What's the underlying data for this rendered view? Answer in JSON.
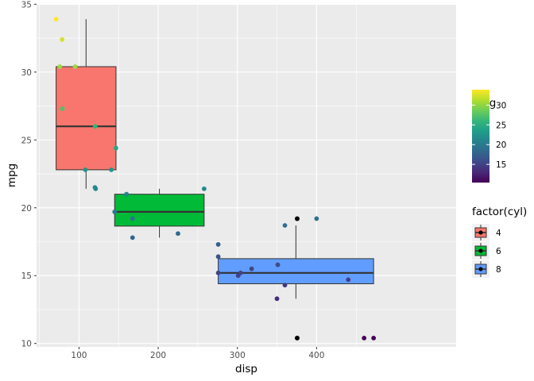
{
  "chart_data": {
    "type": "boxplot",
    "title": "",
    "xlabel": "disp",
    "ylabel": "mpg",
    "xlim": [
      46.4,
      576.2
    ],
    "ylim": [
      9.75,
      35.02
    ],
    "x_ticks": [
      100,
      200,
      300,
      400
    ],
    "y_ticks": [
      10,
      15,
      20,
      25,
      30,
      35
    ],
    "grid": true,
    "boxes": [
      {
        "group": "4",
        "x_min": 71.1,
        "x_max": 146.7,
        "whisker_low": 21.4,
        "q1": 22.8,
        "median": 26.0,
        "q3": 30.4,
        "whisker_high": 33.9,
        "fill": "#F8766D"
      },
      {
        "group": "6",
        "x_min": 145.0,
        "x_max": 258.0,
        "whisker_low": 17.8,
        "q1": 18.65,
        "median": 19.7,
        "q3": 21.0,
        "whisker_high": 21.4,
        "fill": "#00BA38"
      },
      {
        "group": "8",
        "x_min": 275.8,
        "x_max": 472.0,
        "whisker_low": 13.3,
        "q1": 14.4,
        "median": 15.2,
        "q3": 16.25,
        "whisker_high": 18.7,
        "fill": "#619CFF"
      }
    ],
    "outliers": [
      {
        "x": 375.5,
        "y": 19.2
      },
      {
        "x": 375.5,
        "y": 10.4
      }
    ],
    "points": [
      {
        "x": 160.0,
        "y": 21.0
      },
      {
        "x": 160.0,
        "y": 21.0
      },
      {
        "x": 108.0,
        "y": 22.8
      },
      {
        "x": 258.0,
        "y": 21.4
      },
      {
        "x": 360.0,
        "y": 18.7
      },
      {
        "x": 225.0,
        "y": 18.1
      },
      {
        "x": 360.0,
        "y": 14.3
      },
      {
        "x": 146.7,
        "y": 24.4
      },
      {
        "x": 140.8,
        "y": 22.8
      },
      {
        "x": 167.6,
        "y": 19.2
      },
      {
        "x": 167.6,
        "y": 17.8
      },
      {
        "x": 275.8,
        "y": 16.4
      },
      {
        "x": 275.8,
        "y": 17.3
      },
      {
        "x": 275.8,
        "y": 15.2
      },
      {
        "x": 472.0,
        "y": 10.4
      },
      {
        "x": 460.0,
        "y": 10.4
      },
      {
        "x": 440.0,
        "y": 14.7
      },
      {
        "x": 78.7,
        "y": 32.4
      },
      {
        "x": 75.7,
        "y": 30.4
      },
      {
        "x": 71.1,
        "y": 33.9
      },
      {
        "x": 120.1,
        "y": 21.5
      },
      {
        "x": 318.0,
        "y": 15.5
      },
      {
        "x": 304.0,
        "y": 15.2
      },
      {
        "x": 350.0,
        "y": 13.3
      },
      {
        "x": 400.0,
        "y": 19.2
      },
      {
        "x": 79.0,
        "y": 27.3
      },
      {
        "x": 120.3,
        "y": 26.0
      },
      {
        "x": 95.1,
        "y": 30.4
      },
      {
        "x": 351.0,
        "y": 15.8
      },
      {
        "x": 145.0,
        "y": 19.7
      },
      {
        "x": 301.0,
        "y": 15.0
      },
      {
        "x": 121.0,
        "y": 21.4
      }
    ],
    "legend_color": {
      "title": "mpg",
      "placement": "right",
      "ticks": [
        15,
        20,
        25,
        30
      ],
      "range": [
        10.4,
        33.9
      ],
      "palette": [
        "#440154",
        "#482878",
        "#3E4A89",
        "#31688E",
        "#26828E",
        "#1F9E89",
        "#35B779",
        "#6DCD59",
        "#B4DE2C",
        "#FDE725"
      ]
    },
    "legend_fill": {
      "title": "factor(cyl)",
      "placement": "right",
      "entries": [
        {
          "label": "4",
          "color": "#F8766D"
        },
        {
          "label": "6",
          "color": "#00BA38"
        },
        {
          "label": "8",
          "color": "#619CFF"
        }
      ]
    },
    "colors": {
      "panel_bg": "#EBEBEB",
      "grid_major": "#FFFFFF",
      "axis_text": "#4D4D4D",
      "box_outline": "#333333",
      "outlier": "#000000"
    }
  }
}
